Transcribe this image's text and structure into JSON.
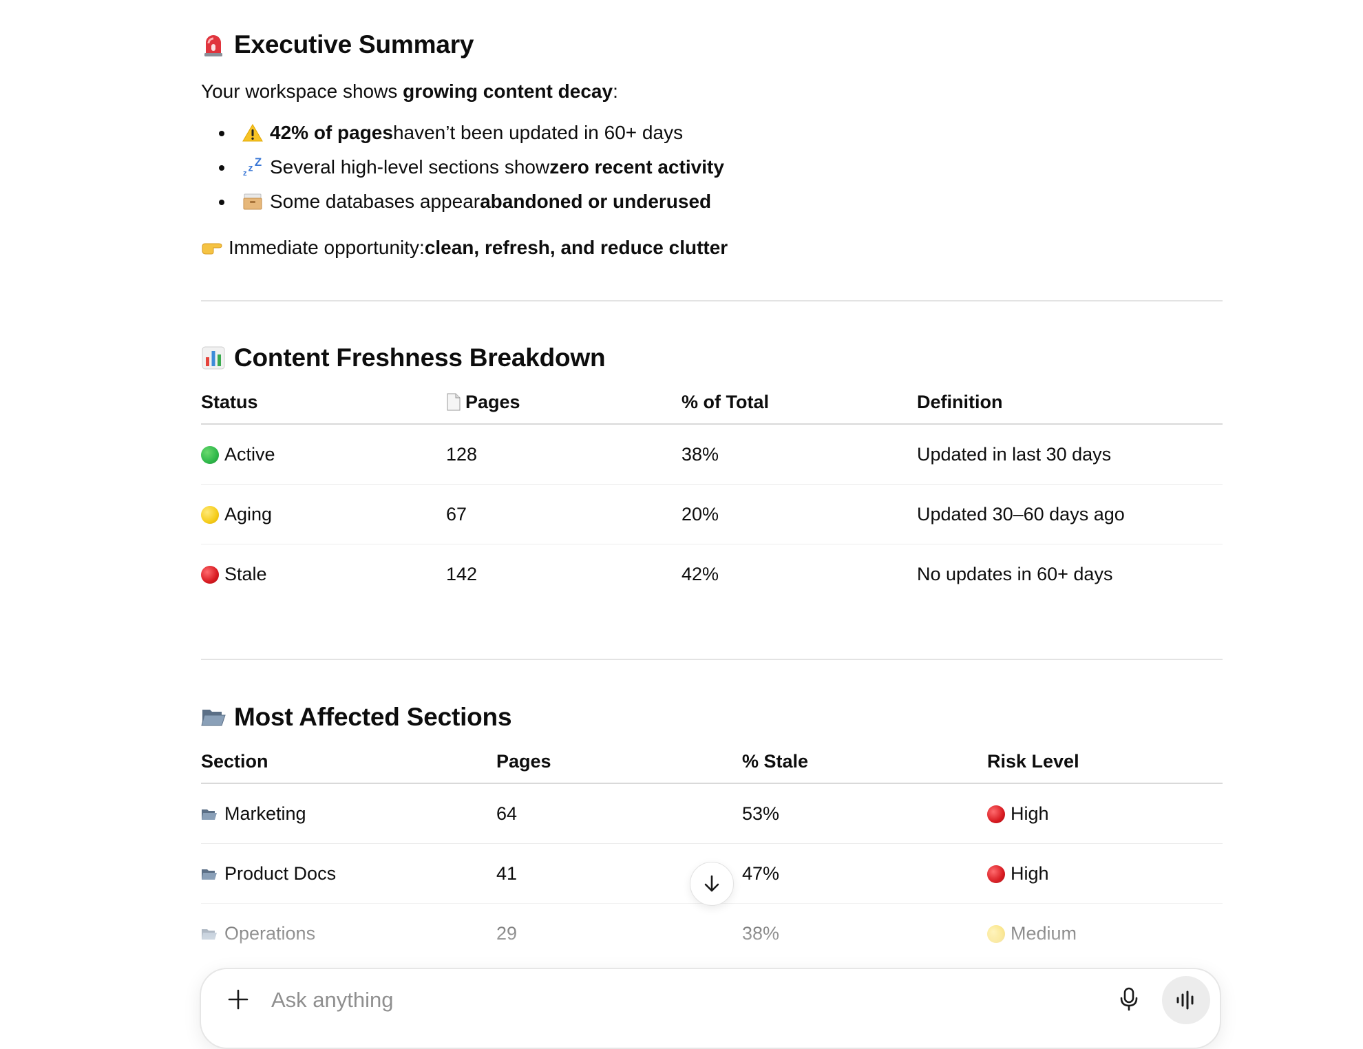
{
  "summary": {
    "heading": "Executive Summary",
    "heading_icon": "rotating-light-icon",
    "intro_prefix": "Your workspace shows ",
    "intro_bold": "growing content decay",
    "intro_suffix": ":",
    "bullets": [
      {
        "icon": "warning-icon",
        "bold": "42% of pages",
        "text": " haven’t been updated in 60+ days"
      },
      {
        "icon": "zzz-icon",
        "text": "Several high-level sections show ",
        "bold": "zero recent activity"
      },
      {
        "icon": "card-file-box-icon",
        "text": "Some databases appear ",
        "bold": "abandoned or underused"
      }
    ],
    "opportunity_label": "Immediate opportunity: ",
    "opportunity_bold": "clean, refresh, and reduce clutter",
    "opportunity_icon": "pointing-right-icon"
  },
  "freshness": {
    "heading": "Content Freshness Breakdown",
    "heading_icon": "bar-chart-icon",
    "columns": [
      "Status",
      "Pages",
      "% of Total",
      "Definition"
    ],
    "pages_column_icon": "page-icon",
    "rows": [
      {
        "status": "Active",
        "color": "#2fb84a",
        "pages": "128",
        "percent": "38%",
        "definition": "Updated in last 30 days"
      },
      {
        "status": "Aging",
        "color": "#f5cc1b",
        "pages": "67",
        "percent": "20%",
        "definition": "Updated 30–60 days ago"
      },
      {
        "status": "Stale",
        "color": "#d81b21",
        "pages": "142",
        "percent": "42%",
        "definition": "No updates in 60+ days"
      }
    ]
  },
  "sections": {
    "heading": "Most Affected Sections",
    "heading_icon": "open-folder-icon",
    "columns": [
      "Section",
      "Pages",
      "% Stale",
      "Risk Level"
    ],
    "rows": [
      {
        "section": "Marketing",
        "pages": "64",
        "stale": "53%",
        "risk": "High",
        "risk_color": "#d81b21"
      },
      {
        "section": "Product Docs",
        "pages": "41",
        "stale": "47%",
        "risk": "High",
        "risk_color": "#d81b21"
      },
      {
        "section": "Operations",
        "pages": "29",
        "stale": "38%",
        "risk": "Medium",
        "risk_color": "#f5cc1b"
      }
    ]
  },
  "composer": {
    "placeholder": "Ask anything",
    "plus_icon": "plus-icon",
    "mic_icon": "microphone-icon",
    "voice_icon": "voice-waveform-icon"
  },
  "scroll_button_icon": "arrow-down-icon"
}
